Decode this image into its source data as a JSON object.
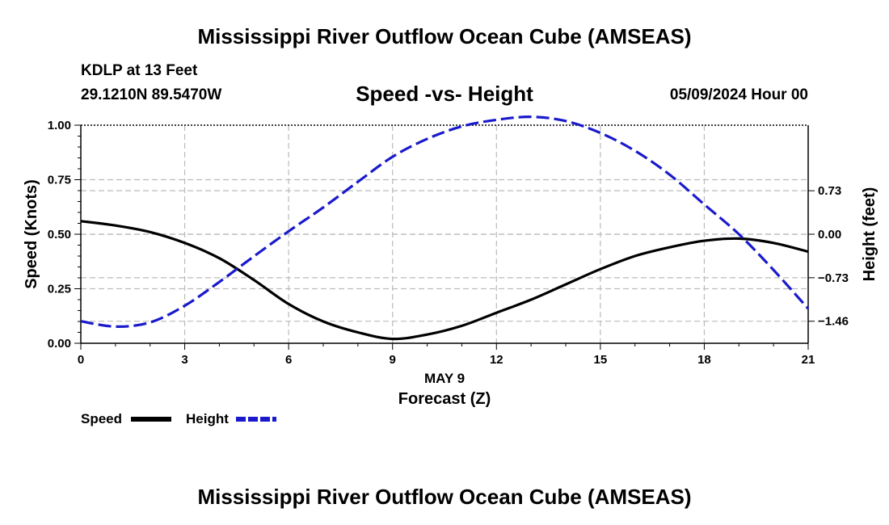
{
  "header": {
    "title": "Mississippi River Outflow Ocean Cube (AMSEAS)",
    "station": "KDLP at 13 Feet",
    "coords": "29.1210N  89.5470W",
    "subtitle": "Speed -vs- Height",
    "datetime": "05/09/2024 Hour 00"
  },
  "footer": {
    "title": "Mississippi River Outflow Ocean Cube (AMSEAS)"
  },
  "legend": {
    "speed_label": "Speed",
    "height_label": "Height"
  },
  "colors": {
    "speed": "#000000",
    "height": "#1a1acc",
    "grid": "#bbbbbb"
  },
  "chart_data": {
    "type": "line",
    "title": "Speed -vs- Height",
    "xlabel": "Forecast (Z)",
    "xsublabel": "MAY 9",
    "ylabel": "Speed (Knots)",
    "y2label": "Height (feet)",
    "xlim": [
      0,
      21
    ],
    "ylim": [
      0,
      1
    ],
    "y2lim": [
      -1.83,
      1.83
    ],
    "xticks": [
      0,
      3,
      6,
      9,
      12,
      15,
      18,
      21
    ],
    "xtick_labels": [
      "0",
      "3",
      "6",
      "9",
      "12",
      "15",
      "18",
      "21"
    ],
    "yticks": [
      0,
      0.25,
      0.5,
      0.75,
      1.0
    ],
    "ytick_labels": [
      "0.00",
      "0.25",
      "0.50",
      "0.75",
      "1.00"
    ],
    "y2ticks": [
      0.73,
      0,
      -0.73,
      -1.46
    ],
    "y2tick_labels": [
      "0.73",
      "0.00",
      "−0.73",
      "−1.46"
    ],
    "grid": true,
    "series": [
      {
        "name": "Speed",
        "axis": "left",
        "style": "solid",
        "x": [
          0,
          1,
          2,
          3,
          4,
          5,
          6,
          7,
          8,
          9,
          10,
          11,
          12,
          13,
          14,
          15,
          16,
          17,
          18,
          19,
          20,
          21
        ],
        "y": [
          0.56,
          0.54,
          0.51,
          0.46,
          0.39,
          0.29,
          0.18,
          0.1,
          0.05,
          0.02,
          0.04,
          0.08,
          0.14,
          0.2,
          0.27,
          0.34,
          0.4,
          0.44,
          0.47,
          0.48,
          0.46,
          0.42
        ]
      },
      {
        "name": "Height",
        "axis": "right",
        "style": "dashed",
        "x": [
          0,
          1,
          2,
          3,
          4,
          5,
          6,
          7,
          8,
          9,
          10,
          11,
          12,
          13,
          14,
          15,
          16,
          17,
          18,
          19,
          20,
          21
        ],
        "y": [
          -1.46,
          -1.55,
          -1.48,
          -1.2,
          -0.8,
          -0.37,
          0.05,
          0.45,
          0.88,
          1.3,
          1.6,
          1.81,
          1.92,
          1.97,
          1.9,
          1.7,
          1.4,
          1.0,
          0.5,
          0.0,
          -0.6,
          -1.25
        ]
      }
    ]
  }
}
